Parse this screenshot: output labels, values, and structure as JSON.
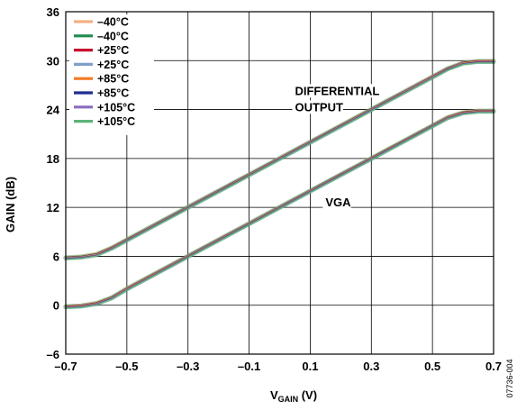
{
  "chart_data": {
    "type": "line",
    "xlabel_main": "V",
    "xlabel_sub": "GAIN",
    "xlabel_unit": " (V)",
    "ylabel": "GAIN (dB)",
    "xlim": [
      -0.7,
      0.7
    ],
    "ylim": [
      -6,
      36
    ],
    "xticks": [
      -0.7,
      -0.5,
      -0.3,
      -0.1,
      0.1,
      0.3,
      0.5,
      0.7
    ],
    "xtick_labels": [
      "–0.7",
      "–0.5",
      "–0.3",
      "–0.1",
      "0.1",
      "0.3",
      "0.5",
      "0.7"
    ],
    "yticks": [
      -6,
      0,
      6,
      12,
      18,
      24,
      30,
      36
    ],
    "ytick_labels": [
      "–6",
      "0",
      "6",
      "12",
      "18",
      "24",
      "30",
      "36"
    ],
    "grid": true,
    "legend_position": "top-left",
    "legend": [
      {
        "label": "–40°C",
        "color": "#f4b183"
      },
      {
        "label": "–40°C",
        "color": "#1e8c4e"
      },
      {
        "label": "+25°C",
        "color": "#c8102e"
      },
      {
        "label": "+25°C",
        "color": "#7f9fc8"
      },
      {
        "label": "+85°C",
        "color": "#f47920"
      },
      {
        "label": "+85°C",
        "color": "#1f2f8f"
      },
      {
        "label": "+105°C",
        "color": "#8b6bbf"
      },
      {
        "label": "+105°C",
        "color": "#5fb27a"
      }
    ],
    "annotations": [
      {
        "text": "DIFFERENTIAL",
        "x": 0.05,
        "y": 25.8
      },
      {
        "text": "OUTPUT",
        "x": 0.05,
        "y": 23.8
      },
      {
        "text": "VGA",
        "x": 0.15,
        "y": 12.1
      }
    ],
    "groups": [
      {
        "annotation": "DIFFERENTIAL OUTPUT",
        "x": [
          -0.7,
          -0.65,
          -0.6,
          -0.55,
          -0.5,
          -0.3,
          -0.1,
          0.1,
          0.3,
          0.5,
          0.55,
          0.6,
          0.65,
          0.7
        ],
        "y": [
          5.8,
          5.9,
          6.2,
          7.0,
          8.0,
          12.0,
          16.0,
          20.0,
          24.0,
          28.0,
          29.0,
          29.7,
          29.9,
          29.9
        ],
        "colors": [
          "#f4b183",
          "#1e8c4e",
          "#c8102e",
          "#7f9fc8",
          "#f47920",
          "#1f2f8f",
          "#8b6bbf",
          "#5fb27a"
        ]
      },
      {
        "annotation": "VGA",
        "x": [
          -0.7,
          -0.65,
          -0.6,
          -0.55,
          -0.5,
          -0.3,
          -0.1,
          0.1,
          0.3,
          0.5,
          0.55,
          0.6,
          0.65,
          0.7
        ],
        "y": [
          -0.2,
          -0.1,
          0.2,
          0.9,
          2.0,
          6.0,
          10.0,
          14.0,
          18.0,
          22.0,
          23.0,
          23.6,
          23.8,
          23.8
        ],
        "colors": [
          "#f4b183",
          "#1e8c4e",
          "#c8102e",
          "#7f9fc8",
          "#f47920",
          "#1f2f8f",
          "#8b6bbf",
          "#5fb27a"
        ]
      }
    ]
  },
  "figure_id": "07736-004"
}
